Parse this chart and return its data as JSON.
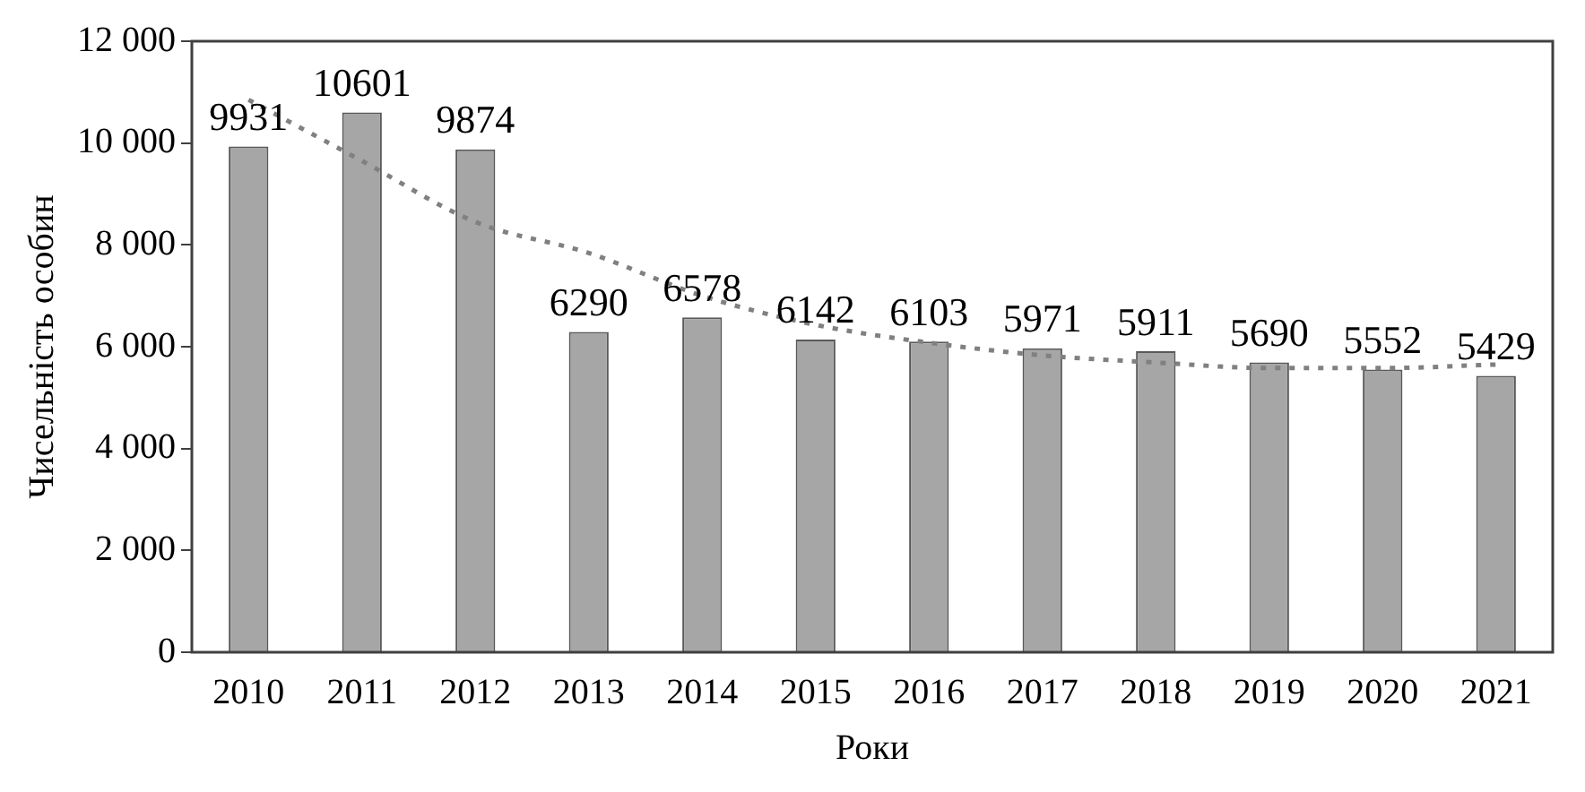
{
  "chart_data": {
    "type": "bar",
    "xlabel": "Роки",
    "ylabel": "Чисельність особин",
    "categories": [
      "2010",
      "2011",
      "2012",
      "2013",
      "2014",
      "2015",
      "2016",
      "2017",
      "2018",
      "2019",
      "2020",
      "2021"
    ],
    "series": [
      {
        "color": "#a6a6a6",
        "values": [
          9931,
          10601,
          9874,
          6290,
          6578,
          6142,
          6103,
          5971,
          5911,
          5690,
          5552,
          5429
        ],
        "value_labels": [
          "9931",
          "10601",
          "9874",
          "6290",
          "6578",
          "6142",
          "6103",
          "5971",
          "5911",
          "5690",
          "5552",
          "5429"
        ]
      },
      {
        "type": "line",
        "color": "#808080",
        "line_style": "dotted",
        "marker": "none",
        "values": [
          10850,
          9650,
          8450,
          7840,
          7000,
          6430,
          6080,
          5830,
          5690,
          5580,
          5580,
          5650
        ]
      }
    ],
    "grid": false,
    "legend": false,
    "ylim": [
      0,
      12000
    ],
    "yticks": [
      {
        "value": 0,
        "label": "0"
      },
      {
        "value": 2000,
        "label": "2 000"
      },
      {
        "value": 4000,
        "label": "4 000"
      },
      {
        "value": 6000,
        "label": "6 000"
      },
      {
        "value": 8000,
        "label": "8 000"
      },
      {
        "value": 10000,
        "label": "10 000"
      },
      {
        "value": 12000,
        "label": "12 000"
      }
    ]
  }
}
